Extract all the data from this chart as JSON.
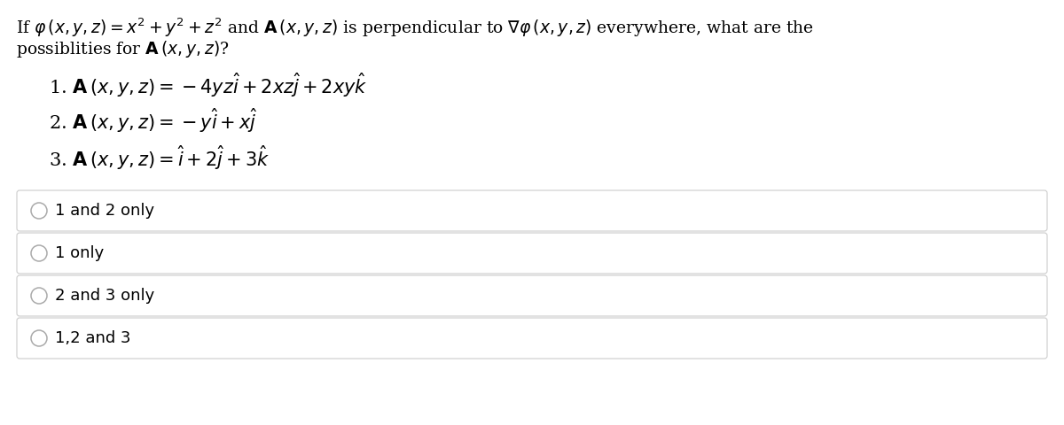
{
  "background_color": "#ffffff",
  "text_color": "#000000",
  "border_color": "#cccccc",
  "circle_color": "#aaaaaa",
  "q_line1": "If $\\varphi\\,(x, y, z) = x^2 + y^2 + z^2$ and $\\mathbf{A}\\,(x, y, z)$ is perpendicular to $\\nabla\\varphi\\,(x, y, z)$ everywhere, what are the",
  "q_line2": "possiblities for $\\mathbf{A}\\,(x, y, z)$?",
  "item1": "1. $\\mathbf{A}\\,(x, y, z) = -4yz\\hat{i} + 2xz\\hat{j} + 2xy\\hat{k}$",
  "item2": "2. $\\mathbf{A}\\,(x, y, z) = -y\\hat{i} + x\\hat{j}$",
  "item3": "3. $\\mathbf{A}\\,(x, y, z) = \\hat{i} + 2\\hat{j} + 3\\hat{k}$",
  "choices": [
    "1 and 2 only",
    "1 only",
    "2 and 3 only",
    "1,2 and 3"
  ],
  "q_fontsize": 13.5,
  "item_fontsize": 15,
  "choice_fontsize": 13
}
